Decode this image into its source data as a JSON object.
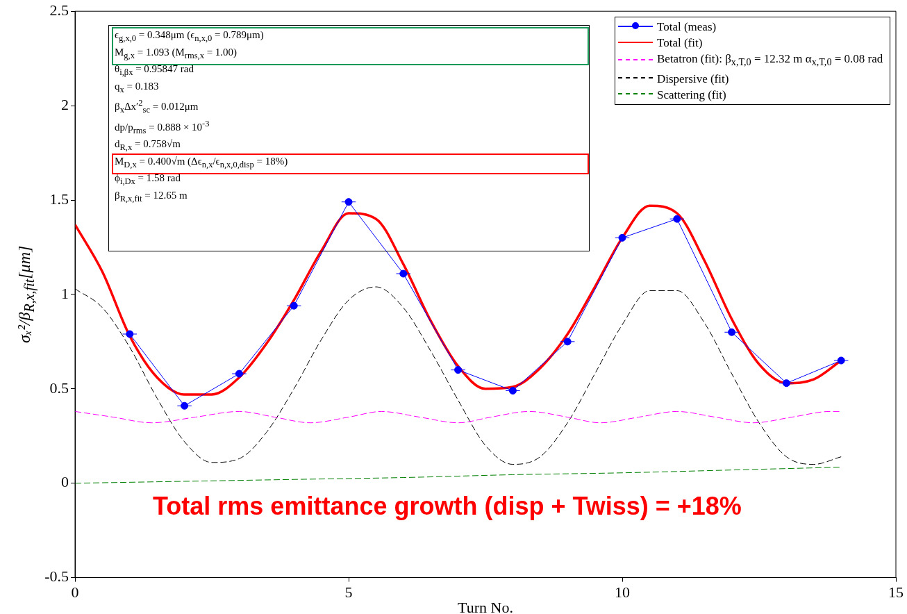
{
  "chart_data": {
    "type": "line",
    "xlabel": "Turn No.",
    "ylabel": "σₓ²/β$_{R,x,fit}$[μm]",
    "xlim": [
      0,
      15
    ],
    "xticks": [
      0,
      5,
      10,
      15
    ],
    "ylim": [
      -0.5,
      2.5
    ],
    "yticks": [
      -0.5,
      0,
      0.5,
      1,
      1.5,
      2,
      2.5
    ],
    "grid": false,
    "legend": "top right",
    "series": [
      {
        "name": "Total (meas)",
        "color": "#0000ff",
        "marker": "circle",
        "line_style": "solid",
        "x": [
          1,
          2,
          3,
          4,
          5,
          6,
          7,
          8,
          9,
          10,
          11,
          12,
          13,
          14
        ],
        "values": [
          0.79,
          0.41,
          0.58,
          0.94,
          1.49,
          1.11,
          0.6,
          0.49,
          0.75,
          1.3,
          1.4,
          0.8,
          0.53,
          0.65
        ],
        "xerrors": [
          0.13,
          0.13,
          0.13,
          0.13,
          0.13,
          0.13,
          0.13,
          0.13,
          0.13,
          0.13,
          0.13,
          0.13,
          0.13,
          0.13
        ]
      },
      {
        "name": "Total (fit)",
        "color": "#ff0000",
        "marker": "none",
        "line_style": "solid",
        "x": [
          0,
          0.5,
          1,
          1.5,
          2,
          2.5,
          3,
          3.5,
          4,
          4.5,
          5,
          5.5,
          6,
          6.5,
          7,
          7.5,
          8,
          8.5,
          9,
          9.5,
          10,
          10.5,
          11,
          11.5,
          12,
          12.5,
          13,
          13.5,
          14
        ],
        "values": [
          1.37,
          1.12,
          0.78,
          0.56,
          0.47,
          0.47,
          0.56,
          0.74,
          0.97,
          1.23,
          1.43,
          1.4,
          1.16,
          0.86,
          0.62,
          0.5,
          0.51,
          0.61,
          0.79,
          1.04,
          1.3,
          1.47,
          1.43,
          1.18,
          0.87,
          0.63,
          0.53,
          0.55,
          0.65
        ]
      },
      {
        "name": "Betatron (fit): β$_{x,T,0}$ = 12.32 m α$_{x,T,0}$ = 0.08 rad",
        "color": "#ff00ff",
        "marker": "none",
        "line_style": "dashed",
        "x": [
          0,
          0.7,
          1.4,
          2.2,
          3,
          3.65,
          4.3,
          5,
          5.6,
          6.3,
          7,
          7.6,
          8.3,
          9,
          9.6,
          10.3,
          11,
          11.7,
          12.4,
          13.1,
          13.8,
          14
        ],
        "values": [
          0.38,
          0.35,
          0.32,
          0.35,
          0.38,
          0.35,
          0.32,
          0.35,
          0.38,
          0.35,
          0.32,
          0.35,
          0.38,
          0.35,
          0.32,
          0.35,
          0.38,
          0.35,
          0.32,
          0.35,
          0.38,
          0.38
        ]
      },
      {
        "name": "Dispersive (fit)",
        "color": "#000000",
        "marker": "none",
        "line_style": "dashed",
        "x": [
          0,
          0.5,
          1,
          1.5,
          2,
          2.5,
          3,
          3.5,
          4,
          4.5,
          5,
          5.5,
          6,
          6.5,
          7,
          7.5,
          8,
          8.5,
          9,
          9.5,
          10,
          10.5,
          11,
          11.5,
          12,
          12.5,
          13,
          13.5,
          14
        ],
        "values": [
          1.03,
          0.93,
          0.72,
          0.45,
          0.22,
          0.11,
          0.13,
          0.27,
          0.5,
          0.76,
          0.97,
          1.04,
          0.93,
          0.7,
          0.44,
          0.2,
          0.1,
          0.14,
          0.32,
          0.58,
          0.84,
          1.02,
          1.02,
          0.85,
          0.58,
          0.32,
          0.14,
          0.1,
          0.14
        ]
      },
      {
        "name": "Scattering (fit)",
        "color": "#008000",
        "marker": "none",
        "line_style": "dashed",
        "x": [
          0,
          2,
          4,
          6,
          8,
          10,
          12,
          14
        ],
        "values": [
          0,
          0.01,
          0.02,
          0.03,
          0.045,
          0.055,
          0.07,
          0.085
        ]
      }
    ],
    "annotations": [
      "ϵ$_{g,x,0}$ = 0.348μm (ϵ$_{n,x,0}$ = 0.789μm)",
      "M$_{g,x}$ = 1.093 (M$_{rms,x}$ = 1.00)",
      "θ$_{i,βx}$ = 0.95847 rad",
      "q$_{x}$ = 0.183",
      "β$_{x}$Δx′$^{2}$$_{sc}$ = 0.012μm",
      "dp/p$_{rms}$ = 0.888 × 10$^{-3}$",
      "d$_{R,x}$ = 0.758√m",
      "M$_{D,x}$ = 0.400√m (Δϵ$_{n,x}$/ϵ$_{n,x,0,disp}$ = 18%)",
      "ϕ$_{i,Dx}$ = 1.58 rad",
      "β$_{R,x,fit}$ = 12.65 m",
      "Total rms emittance growth (disp + Twiss) = +18%"
    ]
  }
}
